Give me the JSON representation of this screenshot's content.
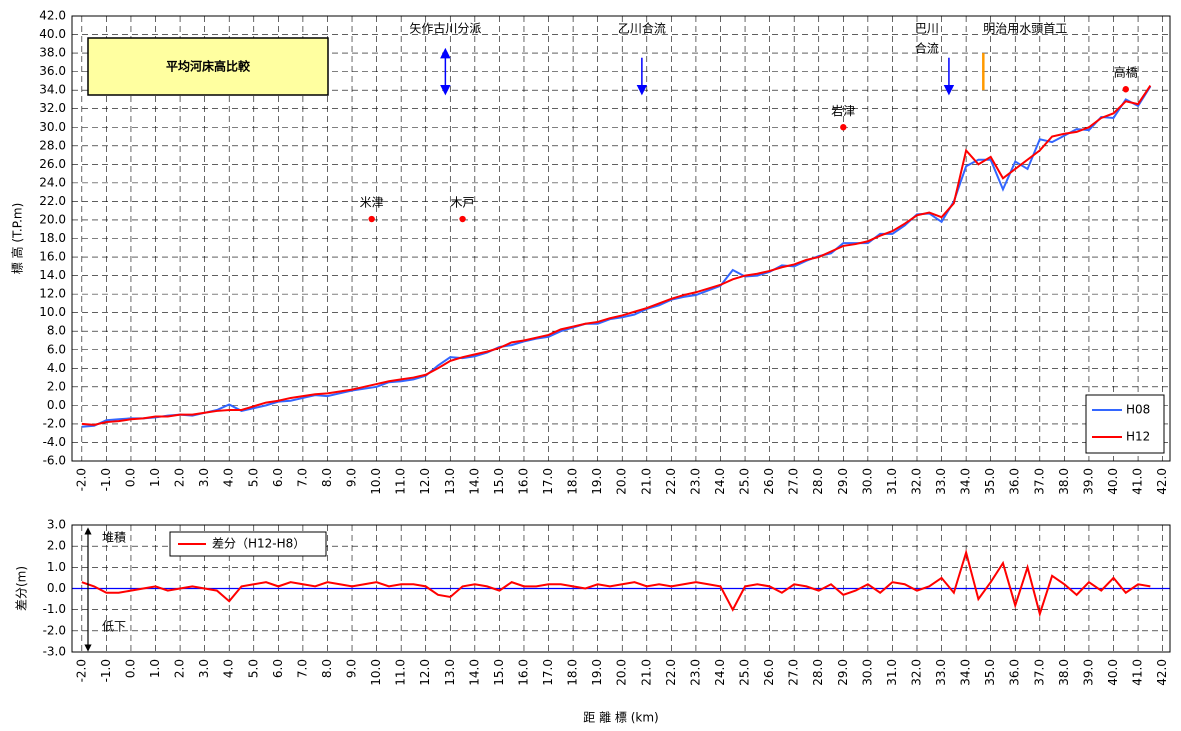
{
  "chart_data": [
    {
      "type": "line",
      "title": "平均河床高比較",
      "ylabel": "標 高 (T.P.m)",
      "x": [
        -2.0,
        -1.5,
        -1.0,
        -0.5,
        0.0,
        0.5,
        1.0,
        1.5,
        2.0,
        2.5,
        3.0,
        3.5,
        4.0,
        4.5,
        5.0,
        5.5,
        6.0,
        6.5,
        7.0,
        7.5,
        8.0,
        8.5,
        9.0,
        9.5,
        10.0,
        10.5,
        11.0,
        11.5,
        12.0,
        12.5,
        13.0,
        13.5,
        14.0,
        14.5,
        15.0,
        15.5,
        16.0,
        16.5,
        17.0,
        17.5,
        18.0,
        18.5,
        19.0,
        19.5,
        20.0,
        20.5,
        21.0,
        21.5,
        22.0,
        22.5,
        23.0,
        23.5,
        24.0,
        24.5,
        25.0,
        25.5,
        26.0,
        26.5,
        27.0,
        27.5,
        28.0,
        28.5,
        29.0,
        29.5,
        30.0,
        30.5,
        31.0,
        31.5,
        32.0,
        32.5,
        33.0,
        33.5,
        34.0,
        34.5,
        35.0,
        35.5,
        36.0,
        36.5,
        37.0,
        37.5,
        38.0,
        38.5,
        39.0,
        39.5,
        40.0,
        40.5,
        41.0,
        41.5
      ],
      "series": [
        {
          "name": "H08",
          "color": "#3366ff",
          "values": [
            -2.3,
            -2.2,
            -1.6,
            -1.5,
            -1.4,
            -1.4,
            -1.3,
            -1.1,
            -1.0,
            -1.1,
            -0.8,
            -0.5,
            0.1,
            -0.6,
            -0.3,
            0.0,
            0.4,
            0.5,
            0.8,
            1.1,
            1.0,
            1.3,
            1.6,
            1.8,
            2.0,
            2.5,
            2.6,
            2.8,
            3.2,
            4.3,
            5.2,
            5.1,
            5.3,
            5.7,
            6.3,
            6.5,
            6.9,
            7.2,
            7.4,
            8.0,
            8.4,
            8.8,
            8.8,
            9.3,
            9.5,
            9.8,
            10.4,
            10.8,
            11.4,
            11.7,
            11.9,
            12.4,
            12.9,
            14.6,
            13.9,
            14.0,
            14.4,
            15.1,
            15.0,
            15.6,
            16.1,
            16.4,
            17.5,
            17.5,
            17.5,
            18.5,
            18.5,
            19.4,
            20.6,
            20.7,
            19.8,
            22.0,
            25.8,
            26.5,
            26.5,
            23.3,
            26.3,
            25.5,
            28.7,
            28.4,
            29.1,
            29.8,
            29.7,
            31.1,
            31.0,
            33.0,
            32.3,
            34.4
          ]
        },
        {
          "name": "H12",
          "color": "#ff0000",
          "values": [
            -2.0,
            -2.1,
            -1.8,
            -1.7,
            -1.5,
            -1.4,
            -1.2,
            -1.2,
            -1.0,
            -1.0,
            -0.8,
            -0.6,
            -0.5,
            -0.5,
            -0.1,
            0.3,
            0.5,
            0.8,
            1.0,
            1.2,
            1.3,
            1.5,
            1.7,
            2.0,
            2.3,
            2.6,
            2.8,
            3.0,
            3.3,
            4.0,
            4.8,
            5.2,
            5.5,
            5.8,
            6.2,
            6.8,
            7.0,
            7.3,
            7.6,
            8.2,
            8.5,
            8.8,
            9.0,
            9.4,
            9.7,
            10.1,
            10.5,
            11.0,
            11.5,
            11.9,
            12.2,
            12.6,
            13.0,
            13.6,
            14.0,
            14.2,
            14.5,
            14.9,
            15.2,
            15.7,
            16.0,
            16.6,
            17.2,
            17.4,
            17.7,
            18.3,
            18.8,
            19.6,
            20.5,
            20.8,
            20.3,
            21.8,
            27.5,
            26.0,
            26.8,
            24.5,
            25.5,
            26.5,
            27.5,
            29.0,
            29.3,
            29.5,
            30.0,
            31.0,
            31.5,
            32.8,
            32.5,
            34.5
          ]
        }
      ],
      "xlim": [
        -2.4,
        42.3
      ],
      "ylim": [
        -6,
        42
      ],
      "xticks": [
        {
          "value": -2,
          "label": "-2.0"
        },
        {
          "value": -1,
          "label": "-1.0"
        },
        {
          "value": 0,
          "label": "0.0"
        },
        {
          "value": 1,
          "label": "1.0"
        },
        {
          "value": 2,
          "label": "2.0"
        },
        {
          "value": 3,
          "label": "3.0"
        },
        {
          "value": 4,
          "label": "4.0"
        },
        {
          "value": 5,
          "label": "5.0"
        },
        {
          "value": 6,
          "label": "6.0"
        },
        {
          "value": 7,
          "label": "7.0"
        },
        {
          "value": 8,
          "label": "8.0"
        },
        {
          "value": 9,
          "label": "9.0"
        },
        {
          "value": 10,
          "label": "10.0"
        },
        {
          "value": 11,
          "label": "11.0"
        },
        {
          "value": 12,
          "label": "12.0"
        },
        {
          "value": 13,
          "label": "13.0"
        },
        {
          "value": 14,
          "label": "14.0"
        },
        {
          "value": 15,
          "label": "15.0"
        },
        {
          "value": 16,
          "label": "16.0"
        },
        {
          "value": 17,
          "label": "17.0"
        },
        {
          "value": 18,
          "label": "18.0"
        },
        {
          "value": 19,
          "label": "19.0"
        },
        {
          "value": 20,
          "label": "20.0"
        },
        {
          "value": 21,
          "label": "21.0"
        },
        {
          "value": 22,
          "label": "22.0"
        },
        {
          "value": 23,
          "label": "23.0"
        },
        {
          "value": 24,
          "label": "24.0"
        },
        {
          "value": 25,
          "label": "25.0"
        },
        {
          "value": 26,
          "label": "26.0"
        },
        {
          "value": 27,
          "label": "27.0"
        },
        {
          "value": 28,
          "label": "28.0"
        },
        {
          "value": 29,
          "label": "29.0"
        },
        {
          "value": 30,
          "label": "30.0"
        },
        {
          "value": 31,
          "label": "31.0"
        },
        {
          "value": 32,
          "label": "32.0"
        },
        {
          "value": 33,
          "label": "33.0"
        },
        {
          "value": 34,
          "label": "34.0"
        },
        {
          "value": 35,
          "label": "35.0"
        },
        {
          "value": 36,
          "label": "36.0"
        },
        {
          "value": 37,
          "label": "37.0"
        },
        {
          "value": 38,
          "label": "38.0"
        },
        {
          "value": 39,
          "label": "39.0"
        },
        {
          "value": 40,
          "label": "40.0"
        },
        {
          "value": 41,
          "label": "41.0"
        },
        {
          "value": 42,
          "label": "42.0"
        }
      ],
      "yticks": [
        {
          "value": -6,
          "label": "-6.0"
        },
        {
          "value": -4,
          "label": "-4.0"
        },
        {
          "value": -2,
          "label": "-2.0"
        },
        {
          "value": 0,
          "label": "0.0"
        },
        {
          "value": 2,
          "label": "2.0"
        },
        {
          "value": 4,
          "label": "4.0"
        },
        {
          "value": 6,
          "label": "6.0"
        },
        {
          "value": 8,
          "label": "8.0"
        },
        {
          "value": 10,
          "label": "10.0"
        },
        {
          "value": 12,
          "label": "12.0"
        },
        {
          "value": 14,
          "label": "14.0"
        },
        {
          "value": 16,
          "label": "16.0"
        },
        {
          "value": 18,
          "label": "18.0"
        },
        {
          "value": 20,
          "label": "20.0"
        },
        {
          "value": 22,
          "label": "22.0"
        },
        {
          "value": 24,
          "label": "24.0"
        },
        {
          "value": 26,
          "label": "26.0"
        },
        {
          "value": 28,
          "label": "28.0"
        },
        {
          "value": 30,
          "label": "30.0"
        },
        {
          "value": 32,
          "label": "32.0"
        },
        {
          "value": 34,
          "label": "34.0"
        },
        {
          "value": 36,
          "label": "36.0"
        },
        {
          "value": 38,
          "label": "38.0"
        },
        {
          "value": 40,
          "label": "40.0"
        },
        {
          "value": 42,
          "label": "42.0"
        }
      ],
      "grid": true,
      "legend": "lower right",
      "points": [
        {
          "label": "米津",
          "x": 9.8,
          "y": 20.1
        },
        {
          "label": "木戸",
          "x": 13.5,
          "y": 20.1
        },
        {
          "label": "岩津",
          "x": 29.0,
          "y": 30.0
        },
        {
          "label": "高橋",
          "x": 40.5,
          "y": 34.1
        }
      ],
      "arrows": [
        {
          "lines": [
            "矢作古川分派"
          ],
          "x": 12.8,
          "y": [
            34,
            38
          ],
          "direction": "both",
          "color": "#0000ff"
        },
        {
          "lines": [
            "乙川合流"
          ],
          "x": 20.8,
          "y": [
            37.5,
            34
          ],
          "direction": "down",
          "color": "#0000ff"
        },
        {
          "lines": [
            "巴川",
            "合流"
          ],
          "x": 33.3,
          "y": [
            37.5,
            34
          ],
          "direction": "down",
          "color": "#0000ff"
        },
        {
          "lines": [
            "明治用水頭首工"
          ],
          "x": 34.7,
          "y": [
            34,
            38
          ],
          "direction": "none",
          "color": "#ff9900"
        }
      ]
    },
    {
      "type": "line",
      "ylabel": "差分(m)",
      "xlabel": "距 離 標 (km)",
      "x": [
        -2.0,
        -1.5,
        -1.0,
        -0.5,
        0.0,
        0.5,
        1.0,
        1.5,
        2.0,
        2.5,
        3.0,
        3.5,
        4.0,
        4.5,
        5.0,
        5.5,
        6.0,
        6.5,
        7.0,
        7.5,
        8.0,
        8.5,
        9.0,
        9.5,
        10.0,
        10.5,
        11.0,
        11.5,
        12.0,
        12.5,
        13.0,
        13.5,
        14.0,
        14.5,
        15.0,
        15.5,
        16.0,
        16.5,
        17.0,
        17.5,
        18.0,
        18.5,
        19.0,
        19.5,
        20.0,
        20.5,
        21.0,
        21.5,
        22.0,
        22.5,
        23.0,
        23.5,
        24.0,
        24.5,
        25.0,
        25.5,
        26.0,
        26.5,
        27.0,
        27.5,
        28.0,
        28.5,
        29.0,
        29.5,
        30.0,
        30.5,
        31.0,
        31.5,
        32.0,
        32.5,
        33.0,
        33.5,
        34.0,
        34.5,
        35.0,
        35.5,
        36.0,
        36.5,
        37.0,
        37.5,
        38.0,
        38.5,
        39.0,
        39.5,
        40.0,
        40.5,
        41.0,
        41.5
      ],
      "series": [
        {
          "name": "差分（H12-H8）",
          "color": "#ff0000",
          "values": [
            0.3,
            0.1,
            -0.2,
            -0.2,
            -0.1,
            0.0,
            0.1,
            -0.1,
            0.0,
            0.1,
            0.0,
            -0.1,
            -0.6,
            0.1,
            0.2,
            0.3,
            0.1,
            0.3,
            0.2,
            0.1,
            0.3,
            0.2,
            0.1,
            0.2,
            0.3,
            0.1,
            0.2,
            0.2,
            0.1,
            -0.3,
            -0.4,
            0.1,
            0.2,
            0.1,
            -0.1,
            0.3,
            0.1,
            0.1,
            0.2,
            0.2,
            0.1,
            0.0,
            0.2,
            0.1,
            0.2,
            0.3,
            0.1,
            0.2,
            0.1,
            0.2,
            0.3,
            0.2,
            0.1,
            -1.0,
            0.1,
            0.2,
            0.1,
            -0.2,
            0.2,
            0.1,
            -0.1,
            0.2,
            -0.3,
            -0.1,
            0.2,
            -0.2,
            0.3,
            0.2,
            -0.1,
            0.1,
            0.5,
            -0.2,
            1.7,
            -0.5,
            0.3,
            1.2,
            -0.8,
            1.0,
            -1.2,
            0.6,
            0.2,
            -0.3,
            0.3,
            -0.1,
            0.5,
            -0.2,
            0.2,
            0.1
          ]
        }
      ],
      "xlim": [
        -2.4,
        42.3
      ],
      "ylim": [
        -3,
        3
      ],
      "xticks": [
        {
          "value": -2,
          "label": "-2.0"
        },
        {
          "value": -1,
          "label": "-1.0"
        },
        {
          "value": 0,
          "label": "0.0"
        },
        {
          "value": 1,
          "label": "1.0"
        },
        {
          "value": 2,
          "label": "2.0"
        },
        {
          "value": 3,
          "label": "3.0"
        },
        {
          "value": 4,
          "label": "4.0"
        },
        {
          "value": 5,
          "label": "5.0"
        },
        {
          "value": 6,
          "label": "6.0"
        },
        {
          "value": 7,
          "label": "7.0"
        },
        {
          "value": 8,
          "label": "8.0"
        },
        {
          "value": 9,
          "label": "9.0"
        },
        {
          "value": 10,
          "label": "10.0"
        },
        {
          "value": 11,
          "label": "11.0"
        },
        {
          "value": 12,
          "label": "12.0"
        },
        {
          "value": 13,
          "label": "13.0"
        },
        {
          "value": 14,
          "label": "14.0"
        },
        {
          "value": 15,
          "label": "15.0"
        },
        {
          "value": 16,
          "label": "16.0"
        },
        {
          "value": 17,
          "label": "17.0"
        },
        {
          "value": 18,
          "label": "18.0"
        },
        {
          "value": 19,
          "label": "19.0"
        },
        {
          "value": 20,
          "label": "20.0"
        },
        {
          "value": 21,
          "label": "21.0"
        },
        {
          "value": 22,
          "label": "22.0"
        },
        {
          "value": 23,
          "label": "23.0"
        },
        {
          "value": 24,
          "label": "24.0"
        },
        {
          "value": 25,
          "label": "25.0"
        },
        {
          "value": 26,
          "label": "26.0"
        },
        {
          "value": 27,
          "label": "27.0"
        },
        {
          "value": 28,
          "label": "28.0"
        },
        {
          "value": 29,
          "label": "29.0"
        },
        {
          "value": 30,
          "label": "30.0"
        },
        {
          "value": 31,
          "label": "31.0"
        },
        {
          "value": 32,
          "label": "32.0"
        },
        {
          "value": 33,
          "label": "33.0"
        },
        {
          "value": 34,
          "label": "34.0"
        },
        {
          "value": 35,
          "label": "35.0"
        },
        {
          "value": 36,
          "label": "36.0"
        },
        {
          "value": 37,
          "label": "37.0"
        },
        {
          "value": 38,
          "label": "38.0"
        },
        {
          "value": 39,
          "label": "39.0"
        },
        {
          "value": 40,
          "label": "40.0"
        },
        {
          "value": 41,
          "label": "41.0"
        },
        {
          "value": 42,
          "label": "42.0"
        }
      ],
      "yticks": [
        {
          "value": -3,
          "label": "-3.0"
        },
        {
          "value": -2,
          "label": "-2.0"
        },
        {
          "value": -1,
          "label": "-1.0"
        },
        {
          "value": 0,
          "label": "0.0"
        },
        {
          "value": 1,
          "label": "1.0"
        },
        {
          "value": 2,
          "label": "2.0"
        },
        {
          "value": 3,
          "label": "3.0"
        }
      ],
      "grid": true,
      "legend": "upper left",
      "hline": {
        "y": 0,
        "color": "#0000ff"
      },
      "annotations": [
        {
          "text": "堆積",
          "direction": "up"
        },
        {
          "text": "低下",
          "direction": "down"
        }
      ]
    }
  ]
}
